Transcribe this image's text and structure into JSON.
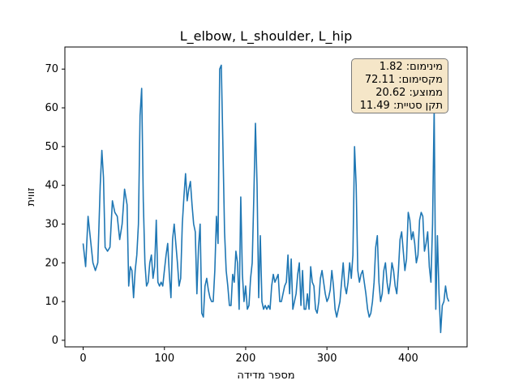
{
  "chart_data": {
    "type": "line",
    "title": "L_elbow, L_shoulder, L_hip",
    "xlabel": "מספר מדידה",
    "ylabel": "זווית",
    "xlim": [
      -22.5,
      472.5
    ],
    "ylim": [
      -1.7,
      75.7
    ],
    "xticks": [
      0,
      100,
      200,
      300,
      400
    ],
    "yticks": [
      0,
      10,
      20,
      30,
      40,
      50,
      60,
      70
    ],
    "grid": false,
    "series": [
      {
        "color": "#1f77b4",
        "points": [
          [
            0,
            25
          ],
          [
            3,
            19
          ],
          [
            6,
            32
          ],
          [
            9,
            26
          ],
          [
            12,
            20
          ],
          [
            15,
            18
          ],
          [
            18,
            20
          ],
          [
            21,
            40
          ],
          [
            23,
            49
          ],
          [
            25,
            42
          ],
          [
            27,
            24
          ],
          [
            30,
            23
          ],
          [
            33,
            24
          ],
          [
            36,
            36
          ],
          [
            39,
            33
          ],
          [
            42,
            32
          ],
          [
            45,
            26
          ],
          [
            48,
            30
          ],
          [
            51,
            39
          ],
          [
            54,
            35
          ],
          [
            56,
            14
          ],
          [
            58,
            19
          ],
          [
            60,
            18
          ],
          [
            62,
            11
          ],
          [
            64,
            18
          ],
          [
            66,
            22
          ],
          [
            68,
            30
          ],
          [
            70,
            58
          ],
          [
            72,
            65
          ],
          [
            74,
            36
          ],
          [
            76,
            20
          ],
          [
            78,
            14
          ],
          [
            80,
            15
          ],
          [
            82,
            20
          ],
          [
            84,
            22
          ],
          [
            86,
            16
          ],
          [
            88,
            19
          ],
          [
            90,
            31
          ],
          [
            92,
            15
          ],
          [
            94,
            14
          ],
          [
            96,
            15
          ],
          [
            98,
            14
          ],
          [
            100,
            18
          ],
          [
            102,
            22
          ],
          [
            104,
            25
          ],
          [
            106,
            17
          ],
          [
            108,
            11
          ],
          [
            110,
            26
          ],
          [
            112,
            30
          ],
          [
            114,
            25
          ],
          [
            116,
            20
          ],
          [
            118,
            14
          ],
          [
            120,
            16
          ],
          [
            122,
            30
          ],
          [
            124,
            37
          ],
          [
            126,
            43
          ],
          [
            128,
            36
          ],
          [
            130,
            39
          ],
          [
            132,
            41
          ],
          [
            134,
            35
          ],
          [
            136,
            30
          ],
          [
            138,
            28
          ],
          [
            140,
            12
          ],
          [
            142,
            24
          ],
          [
            144,
            30
          ],
          [
            146,
            7
          ],
          [
            148,
            6
          ],
          [
            150,
            14
          ],
          [
            152,
            16
          ],
          [
            154,
            13
          ],
          [
            156,
            11
          ],
          [
            158,
            10
          ],
          [
            160,
            10
          ],
          [
            162,
            18
          ],
          [
            164,
            32
          ],
          [
            166,
            25
          ],
          [
            168,
            70
          ],
          [
            170,
            71
          ],
          [
            172,
            50
          ],
          [
            174,
            28
          ],
          [
            176,
            18
          ],
          [
            178,
            14
          ],
          [
            180,
            9
          ],
          [
            182,
            9
          ],
          [
            184,
            17
          ],
          [
            186,
            15
          ],
          [
            188,
            23
          ],
          [
            190,
            20
          ],
          [
            192,
            8
          ],
          [
            194,
            37
          ],
          [
            196,
            17
          ],
          [
            198,
            10
          ],
          [
            200,
            14
          ],
          [
            202,
            8
          ],
          [
            204,
            9
          ],
          [
            206,
            16
          ],
          [
            208,
            20
          ],
          [
            210,
            37
          ],
          [
            212,
            56
          ],
          [
            214,
            40
          ],
          [
            216,
            11
          ],
          [
            218,
            27
          ],
          [
            220,
            10
          ],
          [
            222,
            8
          ],
          [
            224,
            9
          ],
          [
            226,
            8
          ],
          [
            228,
            9
          ],
          [
            230,
            8
          ],
          [
            232,
            14
          ],
          [
            234,
            17
          ],
          [
            236,
            15
          ],
          [
            238,
            16
          ],
          [
            240,
            17
          ],
          [
            242,
            10
          ],
          [
            244,
            10
          ],
          [
            246,
            12
          ],
          [
            248,
            14
          ],
          [
            250,
            15
          ],
          [
            252,
            22
          ],
          [
            254,
            12
          ],
          [
            256,
            21
          ],
          [
            258,
            8
          ],
          [
            260,
            10
          ],
          [
            262,
            12
          ],
          [
            264,
            17
          ],
          [
            266,
            20
          ],
          [
            268,
            9
          ],
          [
            270,
            18
          ],
          [
            272,
            8
          ],
          [
            274,
            8
          ],
          [
            276,
            12
          ],
          [
            278,
            8
          ],
          [
            280,
            19
          ],
          [
            282,
            15
          ],
          [
            284,
            14
          ],
          [
            286,
            8
          ],
          [
            288,
            7
          ],
          [
            290,
            10
          ],
          [
            292,
            16
          ],
          [
            294,
            18
          ],
          [
            296,
            15
          ],
          [
            298,
            12
          ],
          [
            300,
            10
          ],
          [
            302,
            11
          ],
          [
            304,
            13
          ],
          [
            306,
            18
          ],
          [
            308,
            14
          ],
          [
            310,
            8
          ],
          [
            312,
            6
          ],
          [
            314,
            8
          ],
          [
            316,
            10
          ],
          [
            318,
            15
          ],
          [
            320,
            20
          ],
          [
            322,
            14
          ],
          [
            324,
            12
          ],
          [
            326,
            15
          ],
          [
            328,
            20
          ],
          [
            330,
            16
          ],
          [
            332,
            22
          ],
          [
            334,
            50
          ],
          [
            336,
            40
          ],
          [
            338,
            18
          ],
          [
            340,
            15
          ],
          [
            342,
            17
          ],
          [
            344,
            18
          ],
          [
            346,
            15
          ],
          [
            348,
            12
          ],
          [
            350,
            8
          ],
          [
            352,
            6
          ],
          [
            354,
            7
          ],
          [
            356,
            10
          ],
          [
            358,
            15
          ],
          [
            360,
            24
          ],
          [
            362,
            27
          ],
          [
            364,
            15
          ],
          [
            366,
            10
          ],
          [
            368,
            12
          ],
          [
            370,
            18
          ],
          [
            372,
            20
          ],
          [
            374,
            15
          ],
          [
            376,
            12
          ],
          [
            378,
            15
          ],
          [
            380,
            20
          ],
          [
            382,
            18
          ],
          [
            384,
            14
          ],
          [
            386,
            12
          ],
          [
            388,
            18
          ],
          [
            390,
            26
          ],
          [
            392,
            28
          ],
          [
            394,
            23
          ],
          [
            396,
            18
          ],
          [
            398,
            21
          ],
          [
            400,
            33
          ],
          [
            402,
            31
          ],
          [
            404,
            26
          ],
          [
            406,
            28
          ],
          [
            408,
            25
          ],
          [
            410,
            20
          ],
          [
            412,
            22
          ],
          [
            414,
            31
          ],
          [
            416,
            33
          ],
          [
            418,
            32
          ],
          [
            420,
            23
          ],
          [
            422,
            25
          ],
          [
            424,
            28
          ],
          [
            426,
            19
          ],
          [
            428,
            15
          ],
          [
            430,
            30
          ],
          [
            432,
            60
          ],
          [
            434,
            8
          ],
          [
            436,
            27
          ],
          [
            438,
            12
          ],
          [
            440,
            2
          ],
          [
            442,
            9
          ],
          [
            444,
            10
          ],
          [
            446,
            14
          ],
          [
            448,
            11
          ],
          [
            450,
            10
          ]
        ]
      }
    ],
    "stats": {
      "min": "מינימום: 1.82",
      "max": "מקסימום: 72.11",
      "mean": "ממוצע: 20.62",
      "std": "תקן סטיית: 11.49"
    },
    "stats_box_bg": "#f5e6c8"
  }
}
